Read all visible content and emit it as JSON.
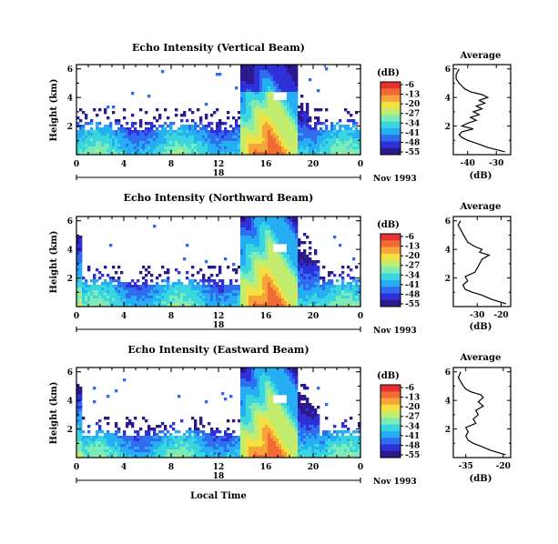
{
  "chart_data": {
    "type": "heatmap",
    "date_label": "Nov 1993",
    "day_label": "18",
    "xlabel_main": "Local Time",
    "colorbar": {
      "unit": "(dB)",
      "ticks": [
        "-6",
        "-13",
        "-20",
        "-27",
        "-34",
        "-41",
        "-48",
        "-55"
      ],
      "range": [
        -55,
        -6
      ],
      "colors": [
        "#2a1a8c",
        "#3030d8",
        "#2f6cf0",
        "#26aef4",
        "#3ad6e0",
        "#7cebb8",
        "#c2ec6e",
        "#f4e040",
        "#f6a43a",
        "#f26a34",
        "#e83030"
      ]
    },
    "x_ticks": [
      "0",
      "4",
      "8",
      "12",
      "16",
      "20",
      "0"
    ],
    "y_ticks": [
      "6",
      "4",
      "2"
    ],
    "ylabel": "Height (km)",
    "panels": [
      {
        "title": "Echo Intensity (Vertical Beam)",
        "profile_title": "Average",
        "profile_xlabel": "(dB)",
        "profile_ticks": [
          "-40",
          "-30"
        ],
        "profile_xlim": [
          -45,
          -25
        ],
        "profile": [
          [
            0.2,
            -27
          ],
          [
            0.5,
            -33
          ],
          [
            0.8,
            -37
          ],
          [
            1.0,
            -40
          ],
          [
            1.2,
            -42
          ],
          [
            1.4,
            -43
          ],
          [
            1.6,
            -42
          ],
          [
            1.8,
            -38
          ],
          [
            2.0,
            -42
          ],
          [
            2.2,
            -40
          ],
          [
            2.4,
            -37
          ],
          [
            2.6,
            -39
          ],
          [
            2.8,
            -36
          ],
          [
            3.0,
            -38
          ],
          [
            3.2,
            -35
          ],
          [
            3.4,
            -37
          ],
          [
            3.6,
            -34
          ],
          [
            3.8,
            -36
          ],
          [
            4.0,
            -33
          ],
          [
            4.2,
            -35
          ],
          [
            4.4,
            -39
          ],
          [
            4.6,
            -41
          ],
          [
            4.8,
            -42
          ],
          [
            5.0,
            -43
          ],
          [
            5.3,
            -44
          ],
          [
            5.6,
            -44
          ],
          [
            6.0,
            -43
          ]
        ]
      },
      {
        "title": "Echo Intensity (Northward Beam)",
        "profile_title": "Average",
        "profile_xlabel": "(dB)",
        "profile_ticks": [
          "-30",
          "-20"
        ],
        "profile_xlim": [
          -40,
          -16
        ],
        "profile": [
          [
            0.2,
            -18
          ],
          [
            0.5,
            -24
          ],
          [
            0.8,
            -28
          ],
          [
            1.0,
            -32
          ],
          [
            1.2,
            -35
          ],
          [
            1.5,
            -36
          ],
          [
            1.8,
            -34
          ],
          [
            2.1,
            -35
          ],
          [
            2.4,
            -31
          ],
          [
            2.7,
            -30
          ],
          [
            3.0,
            -29
          ],
          [
            3.3,
            -28
          ],
          [
            3.6,
            -25
          ],
          [
            3.8,
            -29
          ],
          [
            4.0,
            -28
          ],
          [
            4.2,
            -31
          ],
          [
            4.5,
            -34
          ],
          [
            4.8,
            -35
          ],
          [
            5.1,
            -36
          ],
          [
            5.4,
            -37
          ],
          [
            5.7,
            -38
          ],
          [
            6.0,
            -37
          ]
        ]
      },
      {
        "title": "Echo Intensity (Eastward Beam)",
        "profile_title": "Average",
        "profile_xlabel": "(dB)",
        "profile_ticks": [
          "-35",
          "-20"
        ],
        "profile_xlim": [
          -40,
          -17
        ],
        "profile": [
          [
            0.2,
            -19
          ],
          [
            0.5,
            -25
          ],
          [
            0.8,
            -29
          ],
          [
            1.0,
            -32
          ],
          [
            1.2,
            -34
          ],
          [
            1.5,
            -35
          ],
          [
            1.8,
            -34
          ],
          [
            2.1,
            -35
          ],
          [
            2.4,
            -31
          ],
          [
            2.7,
            -32
          ],
          [
            3.0,
            -30
          ],
          [
            3.3,
            -31
          ],
          [
            3.6,
            -28
          ],
          [
            3.9,
            -30
          ],
          [
            4.2,
            -28
          ],
          [
            4.4,
            -29
          ],
          [
            4.6,
            -33
          ],
          [
            4.8,
            -35
          ],
          [
            5.0,
            -36
          ],
          [
            5.3,
            -37
          ],
          [
            5.6,
            -38
          ],
          [
            6.0,
            -37
          ]
        ]
      }
    ]
  }
}
